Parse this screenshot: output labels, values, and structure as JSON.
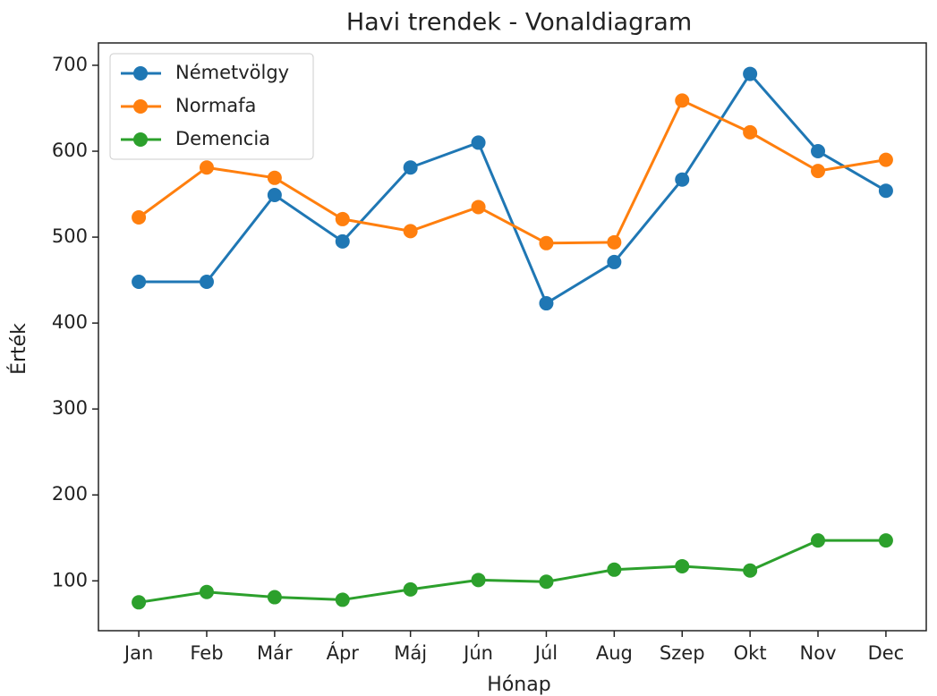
{
  "chart_data": {
    "type": "line",
    "title": "Havi trendek - Vonaldiagram",
    "xlabel": "Hónap",
    "ylabel": "Érték",
    "categories": [
      "Jan",
      "Feb",
      "Már",
      "Ápr",
      "Máj",
      "Jún",
      "Júl",
      "Aug",
      "Szep",
      "Okt",
      "Nov",
      "Dec"
    ],
    "series": [
      {
        "name": "Németvölgy",
        "color": "#1f77b4",
        "values": [
          448,
          448,
          549,
          495,
          581,
          610,
          423,
          471,
          567,
          690,
          600,
          554
        ]
      },
      {
        "name": "Normafa",
        "color": "#ff7f0e",
        "values": [
          523,
          581,
          569,
          521,
          507,
          535,
          493,
          494,
          659,
          622,
          577,
          590
        ]
      },
      {
        "name": "Demencia",
        "color": "#2ca02c",
        "values": [
          75,
          87,
          81,
          78,
          90,
          101,
          99,
          113,
          117,
          112,
          147,
          147
        ]
      }
    ],
    "ylim": [
      42,
      726
    ],
    "yticks": [
      100,
      200,
      300,
      400,
      500,
      600,
      700
    ],
    "legend": "upper left",
    "grid": false
  }
}
